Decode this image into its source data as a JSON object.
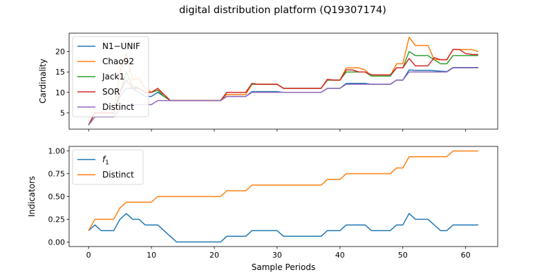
{
  "figure": {
    "title": "digital distribution platform (Q19307174)"
  },
  "chart_data": [
    {
      "type": "line",
      "ylabel": "Cardinality",
      "xlabel": "",
      "xlim": [
        -3.1,
        65.1
      ],
      "ylim": [
        1.0,
        24.5
      ],
      "xticks": [
        0,
        10,
        20,
        30,
        40,
        50,
        60
      ],
      "yticks": [
        5,
        10,
        15,
        20
      ],
      "legend": "upper left",
      "grid": false,
      "x": [
        0,
        1,
        2,
        3,
        4,
        5,
        6,
        7,
        8,
        9,
        10,
        11,
        12,
        13,
        14,
        15,
        16,
        17,
        18,
        19,
        20,
        21,
        22,
        23,
        24,
        25,
        26,
        27,
        28,
        29,
        30,
        31,
        32,
        33,
        34,
        35,
        36,
        37,
        38,
        39,
        40,
        41,
        42,
        43,
        44,
        45,
        46,
        47,
        48,
        49,
        50,
        51,
        52,
        53,
        54,
        55,
        56,
        57,
        58,
        59,
        60,
        61,
        62
      ],
      "series": [
        {
          "name": "N1−UNIF",
          "color": "#1f77b4",
          "values": [
            2,
            5,
            5,
            5,
            5,
            9,
            11,
            11,
            10,
            9,
            9,
            10,
            9,
            8,
            8,
            8,
            8,
            8,
            8,
            8,
            8,
            8,
            9,
            9,
            9,
            9,
            10.2,
            10.2,
            10.2,
            10.2,
            10.2,
            10,
            10,
            10,
            10,
            10,
            10,
            10,
            11,
            11,
            11,
            12.2,
            12.2,
            12.2,
            12.2,
            12,
            12,
            12,
            12,
            13,
            13,
            15.5,
            15.4,
            15.4,
            15.4,
            15.3,
            15.2,
            15.1,
            16.1,
            16.1,
            16.1,
            16.1,
            16.1
          ]
        },
        {
          "name": "Chao92",
          "color": "#ff7f0e",
          "values": [
            2,
            5,
            5,
            5,
            5,
            15,
            19.5,
            13,
            13.5,
            11,
            10,
            11,
            9,
            8,
            8,
            8,
            8,
            8,
            8,
            8,
            8,
            8,
            9.5,
            9.5,
            9.5,
            9.5,
            12,
            12,
            12,
            12,
            12,
            11,
            11,
            11,
            11,
            11,
            11,
            11,
            13,
            13,
            13,
            16,
            16,
            16,
            15.5,
            14,
            14,
            14,
            14,
            17,
            17,
            23.5,
            21.5,
            21.5,
            21.5,
            18,
            18,
            18,
            20.5,
            20.5,
            20.5,
            20.5,
            20
          ]
        },
        {
          "name": "Jack1",
          "color": "#2ca02c",
          "values": [
            2,
            5,
            5,
            5,
            5,
            10,
            15,
            11.5,
            11,
            10,
            10,
            10.5,
            9,
            8,
            8,
            8,
            8,
            8,
            8,
            8,
            8,
            8,
            10,
            10,
            10,
            10,
            12,
            12,
            12,
            12,
            12,
            11,
            11,
            11,
            11,
            11,
            11,
            11,
            13,
            13,
            13,
            15,
            15,
            15,
            15,
            14,
            14,
            14,
            14,
            16,
            16,
            20,
            19,
            19,
            19,
            18,
            17,
            17,
            19,
            19,
            19,
            19,
            19
          ]
        },
        {
          "name": "SOR",
          "color": "#d62728",
          "values": [
            2,
            5,
            5,
            5,
            5,
            10,
            13,
            11,
            11,
            10,
            10,
            11,
            9.5,
            8,
            8,
            8,
            8,
            8,
            8,
            8,
            8,
            8,
            10,
            10,
            10,
            10,
            12.2,
            12,
            12,
            12,
            12,
            11,
            11,
            11,
            11,
            11,
            11,
            11,
            13.2,
            13,
            13,
            15.5,
            15.5,
            15,
            15,
            14.3,
            14.3,
            14.3,
            14.3,
            16,
            16,
            18.3,
            16.5,
            16.5,
            16.5,
            18.5,
            18,
            18,
            20.5,
            20.5,
            19.5,
            19.3,
            19.3
          ]
        },
        {
          "name": "Distinct",
          "color": "#9467bd",
          "values": [
            2,
            4,
            4,
            4,
            4,
            6,
            7,
            7,
            7,
            7,
            7,
            8,
            8,
            8,
            8,
            8,
            8,
            8,
            8,
            8,
            8,
            8,
            9,
            9,
            9,
            9,
            10,
            10,
            10,
            10,
            10,
            10,
            10,
            10,
            10,
            10,
            10,
            10,
            11,
            11,
            11,
            12,
            12,
            12,
            12,
            12,
            12,
            12,
            12,
            13,
            13,
            15,
            15,
            15,
            15,
            15,
            15,
            15,
            16,
            16,
            16,
            16,
            16
          ]
        }
      ]
    },
    {
      "type": "line",
      "xlabel": "Sample Periods",
      "ylabel": "Indicators",
      "xlim": [
        -3.1,
        65.1
      ],
      "ylim": [
        -0.05,
        1.05
      ],
      "xticks": [
        0,
        10,
        20,
        30,
        40,
        50,
        60
      ],
      "yticks": [
        0.0,
        0.25,
        0.5,
        0.75,
        1.0
      ],
      "ytick_labels": [
        "0.00",
        "0.25",
        "0.50",
        "0.75",
        "1.00"
      ],
      "legend": "upper left",
      "grid": false,
      "x": [
        0,
        1,
        2,
        3,
        4,
        5,
        6,
        7,
        8,
        9,
        10,
        11,
        12,
        13,
        14,
        15,
        16,
        17,
        18,
        19,
        20,
        21,
        22,
        23,
        24,
        25,
        26,
        27,
        28,
        29,
        30,
        31,
        32,
        33,
        34,
        35,
        36,
        37,
        38,
        39,
        40,
        41,
        42,
        43,
        44,
        45,
        46,
        47,
        48,
        49,
        50,
        51,
        52,
        53,
        54,
        55,
        56,
        57,
        58,
        59,
        60,
        61,
        62
      ],
      "series": [
        {
          "name": "f1",
          "label_main": "f",
          "label_sub": "1",
          "color": "#1f77b4",
          "values": [
            0.125,
            0.1875,
            0.125,
            0.125,
            0.125,
            0.25,
            0.3125,
            0.25,
            0.25,
            0.1875,
            0.1875,
            0.1875,
            0.125,
            0.0625,
            0,
            0,
            0,
            0,
            0,
            0,
            0,
            0,
            0.0625,
            0.0625,
            0.0625,
            0.0625,
            0.125,
            0.125,
            0.125,
            0.125,
            0.125,
            0.0625,
            0.0625,
            0.0625,
            0.0625,
            0.0625,
            0.0625,
            0.0625,
            0.125,
            0.125,
            0.125,
            0.1875,
            0.1875,
            0.1875,
            0.1875,
            0.125,
            0.125,
            0.125,
            0.125,
            0.1875,
            0.1875,
            0.3125,
            0.25,
            0.25,
            0.25,
            0.1875,
            0.125,
            0.125,
            0.1875,
            0.1875,
            0.1875,
            0.1875,
            0.1875
          ]
        },
        {
          "name": "Distinct",
          "color": "#ff7f0e",
          "values": [
            0.125,
            0.25,
            0.25,
            0.25,
            0.25,
            0.375,
            0.4375,
            0.4375,
            0.4375,
            0.4375,
            0.4375,
            0.5,
            0.5,
            0.5,
            0.5,
            0.5,
            0.5,
            0.5,
            0.5,
            0.5,
            0.5,
            0.5,
            0.5625,
            0.5625,
            0.5625,
            0.5625,
            0.625,
            0.625,
            0.625,
            0.625,
            0.625,
            0.625,
            0.625,
            0.625,
            0.625,
            0.625,
            0.625,
            0.625,
            0.6875,
            0.6875,
            0.6875,
            0.75,
            0.75,
            0.75,
            0.75,
            0.75,
            0.75,
            0.75,
            0.75,
            0.8125,
            0.8125,
            0.9375,
            0.9375,
            0.9375,
            0.9375,
            0.9375,
            0.9375,
            0.9375,
            1.0,
            1.0,
            1.0,
            1.0,
            1.0
          ]
        }
      ]
    }
  ]
}
